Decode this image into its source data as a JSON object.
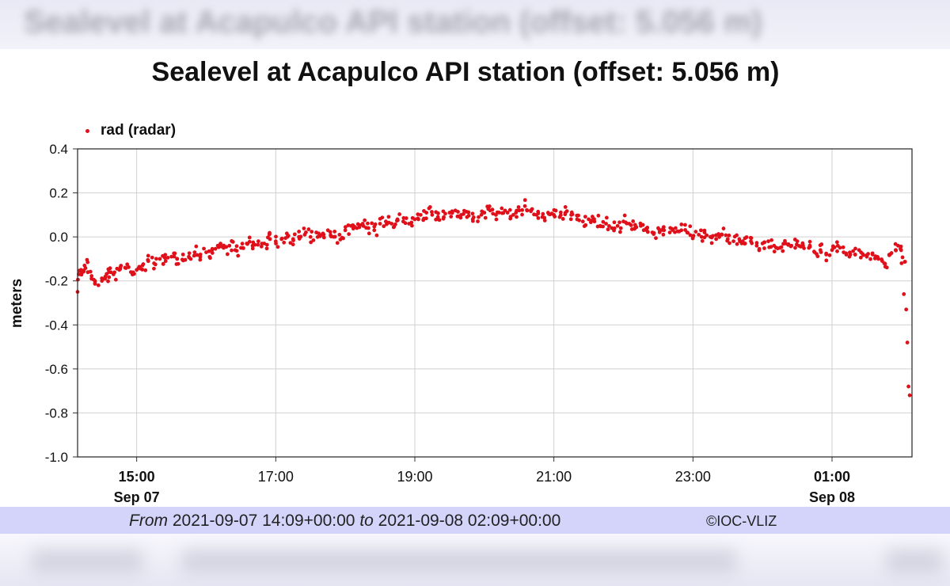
{
  "header_blurred_text": "Sealevel at Acapulco API station (offset: 5.056 m)",
  "colors": {
    "series": "#e0101a",
    "footer_bg": "#d4d4fb",
    "grid": "#d0d0d0"
  },
  "footer": {
    "from_word": "From",
    "from_value": "2021-09-07 14:09+00:00",
    "to_word": "to",
    "to_value": "2021-09-08 02:09+00:00",
    "copyright": "©IOC-VLIZ"
  },
  "chart_data": {
    "type": "scatter",
    "title": "Sealevel at Acapulco API station (offset: 5.056 m)",
    "ylabel": "meters",
    "xlabel": "",
    "ylim": [
      -1.0,
      0.4
    ],
    "yticks": [
      "0.4",
      "0.2",
      "0.0",
      "-0.2",
      "-0.4",
      "-0.6",
      "-0.8",
      "-1.0"
    ],
    "xlim": [
      "2021-09-07 14:09",
      "2021-09-08 02:09"
    ],
    "xticks": [
      {
        "time": "2021-09-07 15:00",
        "label": "15:00",
        "sublabel": "Sep 07",
        "bold": true
      },
      {
        "time": "2021-09-07 17:00",
        "label": "17:00",
        "sublabel": "",
        "bold": false
      },
      {
        "time": "2021-09-07 19:00",
        "label": "19:00",
        "sublabel": "",
        "bold": false
      },
      {
        "time": "2021-09-07 21:00",
        "label": "21:00",
        "sublabel": "",
        "bold": false
      },
      {
        "time": "2021-09-07 23:00",
        "label": "23:00",
        "sublabel": "",
        "bold": false
      },
      {
        "time": "2021-09-08 01:00",
        "label": "01:00",
        "sublabel": "Sep 08",
        "bold": true
      }
    ],
    "grid": true,
    "legend_position": "top-left",
    "series": [
      {
        "name": "rad (radar)",
        "color": "#e0101a",
        "points": [
          [
            "2021-09-07 14:09",
            -0.25
          ],
          [
            "2021-09-07 14:10",
            -0.17
          ],
          [
            "2021-09-07 14:12",
            -0.15
          ],
          [
            "2021-09-07 14:15",
            -0.13
          ],
          [
            "2021-09-07 14:18",
            -0.16
          ],
          [
            "2021-09-07 14:21",
            -0.19
          ],
          [
            "2021-09-07 14:24",
            -0.21
          ],
          [
            "2021-09-07 14:27",
            -0.22
          ],
          [
            "2021-09-07 14:30",
            -0.2
          ],
          [
            "2021-09-07 14:33",
            -0.18
          ],
          [
            "2021-09-07 14:36",
            -0.16
          ],
          [
            "2021-09-07 14:40",
            -0.17
          ],
          [
            "2021-09-07 14:45",
            -0.15
          ],
          [
            "2021-09-07 14:50",
            -0.14
          ],
          [
            "2021-09-07 14:55",
            -0.16
          ],
          [
            "2021-09-07 15:00",
            -0.15
          ],
          [
            "2021-09-07 15:05",
            -0.13
          ],
          [
            "2021-09-07 15:10",
            -0.11
          ],
          [
            "2021-09-07 15:15",
            -0.12
          ],
          [
            "2021-09-07 15:20",
            -0.1
          ],
          [
            "2021-09-07 15:25",
            -0.11
          ],
          [
            "2021-09-07 15:30",
            -0.09
          ],
          [
            "2021-09-07 15:35",
            -0.1
          ],
          [
            "2021-09-07 15:40",
            -0.08
          ],
          [
            "2021-09-07 15:45",
            -0.09
          ],
          [
            "2021-09-07 15:50",
            -0.07
          ],
          [
            "2021-09-07 15:55",
            -0.08
          ],
          [
            "2021-09-07 16:00",
            -0.07
          ],
          [
            "2021-09-07 16:05",
            -0.06
          ],
          [
            "2021-09-07 16:10",
            -0.04
          ],
          [
            "2021-09-07 16:15",
            -0.05
          ],
          [
            "2021-09-07 16:20",
            -0.04
          ],
          [
            "2021-09-07 16:25",
            -0.06
          ],
          [
            "2021-09-07 16:30",
            -0.05
          ],
          [
            "2021-09-07 16:35",
            -0.03
          ],
          [
            "2021-09-07 16:40",
            -0.04
          ],
          [
            "2021-09-07 16:45",
            -0.02
          ],
          [
            "2021-09-07 16:50",
            -0.03
          ],
          [
            "2021-09-07 16:55",
            -0.01
          ],
          [
            "2021-09-07 17:00",
            -0.02
          ],
          [
            "2021-09-07 17:05",
            -0.01
          ],
          [
            "2021-09-07 17:10",
            0.0
          ],
          [
            "2021-09-07 17:15",
            -0.01
          ],
          [
            "2021-09-07 17:20",
            0.0
          ],
          [
            "2021-09-07 17:25",
            0.01
          ],
          [
            "2021-09-07 17:30",
            0.0
          ],
          [
            "2021-09-07 17:35",
            0.02
          ],
          [
            "2021-09-07 17:40",
            0.01
          ],
          [
            "2021-09-07 17:45",
            0.03
          ],
          [
            "2021-09-07 17:50",
            0.0
          ],
          [
            "2021-09-07 17:55",
            0.01
          ],
          [
            "2021-09-07 18:00",
            0.03
          ],
          [
            "2021-09-07 18:05",
            0.05
          ],
          [
            "2021-09-07 18:10",
            0.04
          ],
          [
            "2021-09-07 18:15",
            0.06
          ],
          [
            "2021-09-07 18:20",
            0.04
          ],
          [
            "2021-09-07 18:25",
            0.03
          ],
          [
            "2021-09-07 18:30",
            0.06
          ],
          [
            "2021-09-07 18:35",
            0.07
          ],
          [
            "2021-09-07 18:40",
            0.06
          ],
          [
            "2021-09-07 18:45",
            0.08
          ],
          [
            "2021-09-07 18:50",
            0.07
          ],
          [
            "2021-09-07 18:55",
            0.06
          ],
          [
            "2021-09-07 19:00",
            0.08
          ],
          [
            "2021-09-07 19:05",
            0.1
          ],
          [
            "2021-09-07 19:10",
            0.11
          ],
          [
            "2021-09-07 19:15",
            0.1
          ],
          [
            "2021-09-07 19:20",
            0.08
          ],
          [
            "2021-09-07 19:25",
            0.09
          ],
          [
            "2021-09-07 19:30",
            0.11
          ],
          [
            "2021-09-07 19:35",
            0.12
          ],
          [
            "2021-09-07 19:40",
            0.1
          ],
          [
            "2021-09-07 19:45",
            0.09
          ],
          [
            "2021-09-07 19:50",
            0.08
          ],
          [
            "2021-09-07 19:55",
            0.09
          ],
          [
            "2021-09-07 20:00",
            0.11
          ],
          [
            "2021-09-07 20:05",
            0.12
          ],
          [
            "2021-09-07 20:10",
            0.1
          ],
          [
            "2021-09-07 20:15",
            0.13
          ],
          [
            "2021-09-07 20:20",
            0.11
          ],
          [
            "2021-09-07 20:25",
            0.1
          ],
          [
            "2021-09-07 20:30",
            0.12
          ],
          [
            "2021-09-07 20:35",
            0.14
          ],
          [
            "2021-09-07 20:40",
            0.12
          ],
          [
            "2021-09-07 20:45",
            0.1
          ],
          [
            "2021-09-07 20:50",
            0.09
          ],
          [
            "2021-09-07 20:55",
            0.11
          ],
          [
            "2021-09-07 21:00",
            0.1
          ],
          [
            "2021-09-07 21:05",
            0.09
          ],
          [
            "2021-09-07 21:10",
            0.11
          ],
          [
            "2021-09-07 21:15",
            0.1
          ],
          [
            "2021-09-07 21:20",
            0.08
          ],
          [
            "2021-09-07 21:25",
            0.07
          ],
          [
            "2021-09-07 21:30",
            0.08
          ],
          [
            "2021-09-07 21:35",
            0.07
          ],
          [
            "2021-09-07 21:40",
            0.05
          ],
          [
            "2021-09-07 21:45",
            0.06
          ],
          [
            "2021-09-07 21:50",
            0.04
          ],
          [
            "2021-09-07 21:55",
            0.05
          ],
          [
            "2021-09-07 22:00",
            0.07
          ],
          [
            "2021-09-07 22:05",
            0.06
          ],
          [
            "2021-09-07 22:10",
            0.04
          ],
          [
            "2021-09-07 22:15",
            0.05
          ],
          [
            "2021-09-07 22:20",
            0.03
          ],
          [
            "2021-09-07 22:25",
            0.02
          ],
          [
            "2021-09-07 22:30",
            0.04
          ],
          [
            "2021-09-07 22:35",
            0.03
          ],
          [
            "2021-09-07 22:40",
            0.02
          ],
          [
            "2021-09-07 22:45",
            0.04
          ],
          [
            "2021-09-07 22:50",
            0.03
          ],
          [
            "2021-09-07 22:55",
            0.02
          ],
          [
            "2021-09-07 23:00",
            0.0
          ],
          [
            "2021-09-07 23:05",
            0.01
          ],
          [
            "2021-09-07 23:10",
            0.02
          ],
          [
            "2021-09-07 23:15",
            0.0
          ],
          [
            "2021-09-07 23:20",
            -0.01
          ],
          [
            "2021-09-07 23:25",
            0.01
          ],
          [
            "2021-09-07 23:30",
            -0.01
          ],
          [
            "2021-09-07 23:35",
            -0.02
          ],
          [
            "2021-09-07 23:40",
            -0.01
          ],
          [
            "2021-09-07 23:45",
            -0.03
          ],
          [
            "2021-09-07 23:50",
            -0.02
          ],
          [
            "2021-09-07 23:55",
            -0.04
          ],
          [
            "2021-09-08 00:00",
            -0.03
          ],
          [
            "2021-09-08 00:05",
            -0.02
          ],
          [
            "2021-09-08 00:10",
            -0.04
          ],
          [
            "2021-09-08 00:15",
            -0.05
          ],
          [
            "2021-09-08 00:20",
            -0.03
          ],
          [
            "2021-09-08 00:25",
            -0.04
          ],
          [
            "2021-09-08 00:30",
            -0.02
          ],
          [
            "2021-09-08 00:35",
            -0.04
          ],
          [
            "2021-09-08 00:40",
            -0.05
          ],
          [
            "2021-09-08 00:45",
            -0.07
          ],
          [
            "2021-09-08 00:50",
            -0.06
          ],
          [
            "2021-09-08 00:55",
            -0.08
          ],
          [
            "2021-09-08 01:00",
            -0.06
          ],
          [
            "2021-09-08 01:05",
            -0.04
          ],
          [
            "2021-09-08 01:10",
            -0.07
          ],
          [
            "2021-09-08 01:15",
            -0.09
          ],
          [
            "2021-09-08 01:20",
            -0.08
          ],
          [
            "2021-09-08 01:25",
            -0.07
          ],
          [
            "2021-09-08 01:30",
            -0.09
          ],
          [
            "2021-09-08 01:35",
            -0.08
          ],
          [
            "2021-09-08 01:40",
            -0.1
          ],
          [
            "2021-09-08 01:45",
            -0.12
          ],
          [
            "2021-09-08 01:50",
            -0.08
          ],
          [
            "2021-09-08 01:55",
            -0.06
          ],
          [
            "2021-09-08 01:57",
            -0.04
          ],
          [
            "2021-09-08 02:00",
            -0.12
          ],
          [
            "2021-09-08 02:02",
            -0.26
          ],
          [
            "2021-09-08 02:04",
            -0.33
          ],
          [
            "2021-09-08 02:05",
            -0.48
          ],
          [
            "2021-09-08 02:06",
            -0.68
          ],
          [
            "2021-09-08 02:07",
            -0.72
          ]
        ]
      }
    ]
  }
}
